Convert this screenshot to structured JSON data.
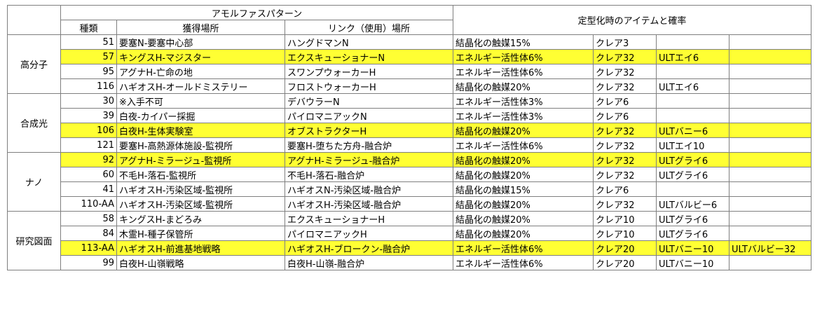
{
  "header": {
    "amorphous_pattern": "アモルファスパターン",
    "type": "種類",
    "acquire_place": "獲得場所",
    "link_place": "リンク（使用）場所",
    "standardize_item_rate": "定型化時のアイテムと確率"
  },
  "groups": [
    {
      "name": "高分子",
      "rows": [
        {
          "num": "51",
          "acquire": "要塞N-要塞中心部",
          "link": "ハングドマンN",
          "item1": "結晶化の触媒15%",
          "item2": "クレア3",
          "item3": "",
          "item4": "",
          "highlight": false
        },
        {
          "num": "57",
          "acquire": "キングスH-マジスター",
          "link": "エクスキューショナーN",
          "item1": "エネルギー活性体6%",
          "item2": "クレア32",
          "item3": "ULTエイ6",
          "item4": "",
          "highlight": true
        },
        {
          "num": "95",
          "acquire": "アグナH-亡命の地",
          "link": "スワンプウォーカーH",
          "item1": "エネルギー活性体6%",
          "item2": "クレア32",
          "item3": "",
          "item4": "",
          "highlight": false
        },
        {
          "num": "116",
          "acquire": "ハギオスH-オールドミステリー",
          "link": "フロストウォーカーH",
          "item1": "結晶化の触媒20%",
          "item2": "クレア32",
          "item3": "ULTエイ6",
          "item4": "",
          "highlight": false
        }
      ]
    },
    {
      "name": "合成光",
      "rows": [
        {
          "num": "30",
          "acquire": "※入手不可",
          "link": "デバウラーN",
          "item1": "エネルギー活性体3%",
          "item2": "クレア6",
          "item3": "",
          "item4": "",
          "highlight": false
        },
        {
          "num": "39",
          "acquire": "白夜-カイパー採掘",
          "link": "パイロマニアックN",
          "item1": "エネルギー活性体3%",
          "item2": "クレア6",
          "item3": "",
          "item4": "",
          "highlight": false
        },
        {
          "num": "106",
          "acquire": "白夜H-生体実験室",
          "link": "オブストラクターH",
          "item1": "結晶化の触媒20%",
          "item2": "クレア32",
          "item3": "ULTバニー6",
          "item4": "",
          "highlight": true
        },
        {
          "num": "121",
          "acquire": "要塞H-高熱源体施設-監視所",
          "link": "要塞H-堕ちた方舟-融合炉",
          "item1": "エネルギー活性体6%",
          "item2": "クレア32",
          "item3": "ULTエイ10",
          "item4": "",
          "highlight": false
        }
      ]
    },
    {
      "name": "ナノ",
      "rows": [
        {
          "num": "92",
          "acquire": "アグナH-ミラージュ-監視所",
          "link": "アグナH-ミラージュ-融合炉",
          "item1": "結晶化の触媒20%",
          "item2": "クレア32",
          "item3": "ULTグライ6",
          "item4": "",
          "highlight": true
        },
        {
          "num": "60",
          "acquire": "不毛H-落石-監視所",
          "link": "不毛H-落石-融合炉",
          "item1": "結晶化の触媒20%",
          "item2": "クレア32",
          "item3": "ULTグライ6",
          "item4": "",
          "highlight": false
        },
        {
          "num": "41",
          "acquire": "ハギオスH-汚染区域-監視所",
          "link": "ハギオスN-汚染区域-融合炉",
          "item1": "結晶化の触媒15%",
          "item2": "クレア6",
          "item3": "",
          "item4": "",
          "highlight": false
        },
        {
          "num": "110-AA",
          "acquire": "ハギオスH-汚染区域-監視所",
          "link": "ハギオスH-汚染区域-融合炉",
          "item1": "結晶化の触媒20%",
          "item2": "クレア32",
          "item3": "ULTバルビー6",
          "item4": "",
          "highlight": false
        }
      ]
    },
    {
      "name": "研究図面",
      "rows": [
        {
          "num": "58",
          "acquire": "キングスH-まどろみ",
          "link": "エクスキューショナーH",
          "item1": "結晶化の触媒20%",
          "item2": "クレア10",
          "item3": "ULTグライ6",
          "item4": "",
          "highlight": false
        },
        {
          "num": "84",
          "acquire": "木霊H-種子保管所",
          "link": "パイロマニアックH",
          "item1": "結晶化の触媒20%",
          "item2": "クレア10",
          "item3": "ULTグライ6",
          "item4": "",
          "highlight": false
        },
        {
          "num": "113-AA",
          "acquire": "ハギオスH-前進基地戦略",
          "link": "ハギオスH-ブロークン-融合炉",
          "item1": "エネルギー活性体6%",
          "item2": "クレア20",
          "item3": "ULTバニー10",
          "item4": "ULTバルビー32",
          "highlight": true
        },
        {
          "num": "99",
          "acquire": "白夜H-山嶺戦略",
          "link": "白夜H-山嶺-融合炉",
          "item1": "エネルギー活性体6%",
          "item2": "クレア20",
          "item3": "ULTバニー10",
          "item4": "",
          "highlight": false
        }
      ]
    }
  ],
  "colors": {
    "highlight": "#ffff33",
    "grid": "#7f7f7f"
  }
}
